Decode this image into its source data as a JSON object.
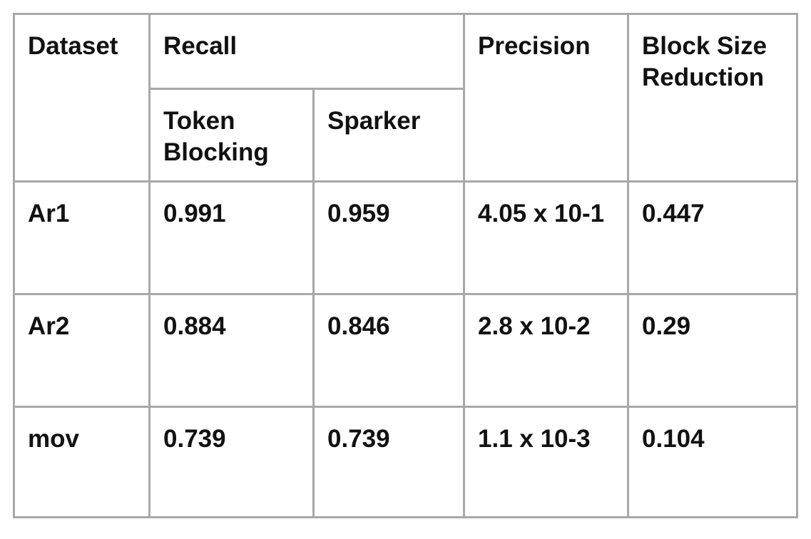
{
  "table": {
    "headers": {
      "dataset": "Dataset",
      "recall": "Recall",
      "precision": "Precision",
      "block_size_reduction": "Block Size Reduction",
      "token_blocking": "Token Blocking",
      "sparker": "Sparker"
    },
    "rows": [
      {
        "dataset": "Ar1",
        "token_blocking": "0.991",
        "sparker": "0.959",
        "precision": "4.05 x 10-1",
        "block_size_reduction": "0.447"
      },
      {
        "dataset": "Ar2",
        "token_blocking": "0.884",
        "sparker": "0.846",
        "precision": "2.8 x 10-2",
        "block_size_reduction": "0.29"
      },
      {
        "dataset": "mov",
        "token_blocking": "0.739",
        "sparker": "0.739",
        "precision": "1.1 x 10-3",
        "block_size_reduction": "0.104"
      }
    ]
  }
}
